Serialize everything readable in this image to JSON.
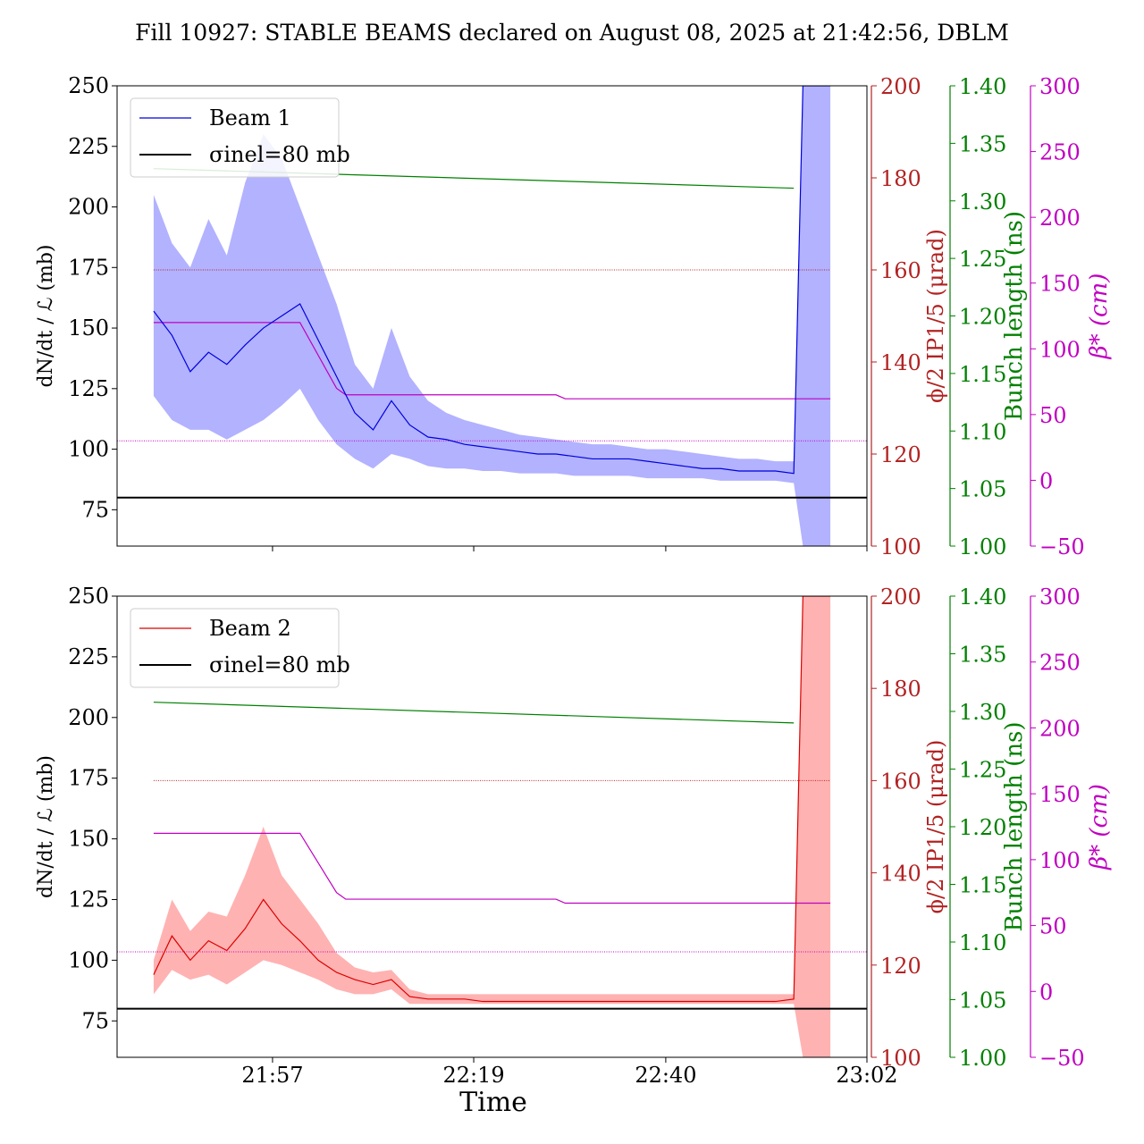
{
  "figure": {
    "title": "Fill 10927: STABLE BEAMS declared on August 08, 2025 at 21:42:56, DBLM",
    "xlabel": "Time",
    "x_tick_labels": [
      "21:57",
      "22:19",
      "22:40",
      "23:02"
    ],
    "colors": {
      "beam1": "#0000dd",
      "beam1_band": "#aaaaff",
      "beam2": "#dd0000",
      "beam2_band": "#ffaaaa",
      "angle_axis": "#b22222",
      "bunch_axis": "#008000",
      "beta_axis": "#c000c0",
      "reference": "#000000"
    }
  },
  "chart_data": [
    {
      "type": "line",
      "panel": "top",
      "series_name": "Beam 1",
      "reference_label": "σinel=80 mb",
      "ylabel_left": "dN/dt / ℒ (mb)",
      "ylabel_angle": "ϕ/2 IP1/5 (μrad)",
      "ylabel_bunch": "Bunch length (ns)",
      "ylabel_beta": "β* (cm)",
      "x_range_minutes": [
        "21:40",
        "23:02"
      ],
      "ylim_left": [
        60,
        250
      ],
      "yticks_left": [
        "75",
        "100",
        "125",
        "150",
        "175",
        "200",
        "225",
        "250"
      ],
      "ylim_angle": [
        100,
        200
      ],
      "yticks_angle": [
        "100",
        "120",
        "140",
        "160",
        "180",
        "200"
      ],
      "ylim_bunch": [
        1.0,
        1.4
      ],
      "yticks_bunch": [
        "1.00",
        "1.05",
        "1.10",
        "1.15",
        "1.20",
        "1.25",
        "1.30",
        "1.35",
        "1.40"
      ],
      "ylim_beta": [
        -50,
        300
      ],
      "yticks_beta": [
        "−50",
        "0",
        "50",
        "100",
        "150",
        "200",
        "250",
        "300"
      ],
      "reference_mb": 80,
      "crossing_angle_urad": 160,
      "beta_dotted_cm": 30,
      "beam_x": [
        "21:44",
        "21:46",
        "21:48",
        "21:50",
        "21:52",
        "21:54",
        "21:56",
        "21:58",
        "22:00",
        "22:02",
        "22:04",
        "22:06",
        "22:08",
        "22:10",
        "22:12",
        "22:14",
        "22:16",
        "22:18",
        "22:20",
        "22:22",
        "22:24",
        "22:26",
        "22:28",
        "22:30",
        "22:32",
        "22:34",
        "22:36",
        "22:38",
        "22:40",
        "22:42",
        "22:44",
        "22:46",
        "22:48",
        "22:50",
        "22:52",
        "22:54",
        "22:55",
        "22:56",
        "22:57",
        "22:58"
      ],
      "beam_y": [
        157,
        147,
        132,
        140,
        135,
        143,
        150,
        155,
        160,
        145,
        130,
        115,
        108,
        120,
        110,
        105,
        104,
        102,
        101,
        100,
        99,
        98,
        98,
        97,
        96,
        96,
        96,
        95,
        94,
        93,
        92,
        92,
        91,
        91,
        91,
        90,
        250,
        250,
        250,
        250
      ],
      "band_low": [
        122,
        112,
        108,
        108,
        104,
        108,
        112,
        118,
        125,
        112,
        102,
        96,
        92,
        98,
        96,
        93,
        92,
        92,
        91,
        91,
        90,
        90,
        90,
        89,
        89,
        89,
        89,
        88,
        88,
        88,
        88,
        87,
        87,
        87,
        87,
        86,
        60,
        60,
        60,
        60
      ],
      "band_high": [
        205,
        185,
        175,
        195,
        180,
        210,
        230,
        220,
        200,
        180,
        160,
        135,
        125,
        150,
        130,
        120,
        115,
        112,
        110,
        108,
        106,
        105,
        104,
        103,
        102,
        102,
        101,
        100,
        100,
        99,
        98,
        97,
        96,
        96,
        95,
        95,
        250,
        250,
        250,
        250
      ],
      "bunch_x": [
        "21:44",
        "22:54"
      ],
      "bunch_y": [
        1.328,
        1.311
      ],
      "beta_x": [
        "21:44",
        "22:00",
        "22:04",
        "22:05",
        "22:28",
        "22:29",
        "22:58"
      ],
      "beta_y": [
        120,
        120,
        70,
        65,
        65,
        62,
        62
      ]
    },
    {
      "type": "line",
      "panel": "bottom",
      "series_name": "Beam 2",
      "reference_label": "σinel=80 mb",
      "ylabel_left": "dN/dt / ℒ (mb)",
      "ylabel_angle": "ϕ/2 IP1/5 (μrad)",
      "ylabel_bunch": "Bunch length (ns)",
      "ylabel_beta": "β* (cm)",
      "x_range_minutes": [
        "21:40",
        "23:02"
      ],
      "ylim_left": [
        60,
        250
      ],
      "yticks_left": [
        "75",
        "100",
        "125",
        "150",
        "175",
        "200",
        "225",
        "250"
      ],
      "ylim_angle": [
        100,
        200
      ],
      "yticks_angle": [
        "100",
        "120",
        "140",
        "160",
        "180",
        "200"
      ],
      "ylim_bunch": [
        1.0,
        1.4
      ],
      "yticks_bunch": [
        "1.00",
        "1.05",
        "1.10",
        "1.15",
        "1.20",
        "1.25",
        "1.30",
        "1.35",
        "1.40"
      ],
      "ylim_beta": [
        -50,
        300
      ],
      "yticks_beta": [
        "−50",
        "0",
        "50",
        "100",
        "150",
        "200",
        "250",
        "300"
      ],
      "reference_mb": 80,
      "crossing_angle_urad": 160,
      "beta_dotted_cm": 30,
      "beam_x": [
        "21:44",
        "21:46",
        "21:48",
        "21:50",
        "21:52",
        "21:54",
        "21:56",
        "21:58",
        "22:00",
        "22:02",
        "22:04",
        "22:06",
        "22:08",
        "22:10",
        "22:12",
        "22:14",
        "22:16",
        "22:18",
        "22:20",
        "22:24",
        "22:28",
        "22:32",
        "22:36",
        "22:40",
        "22:44",
        "22:48",
        "22:52",
        "22:54",
        "22:55",
        "22:56",
        "22:57",
        "22:58"
      ],
      "beam_y": [
        94,
        110,
        100,
        108,
        104,
        113,
        125,
        115,
        108,
        100,
        95,
        92,
        90,
        92,
        85,
        84,
        84,
        84,
        83,
        83,
        83,
        83,
        83,
        83,
        83,
        83,
        83,
        84,
        250,
        250,
        250,
        250
      ],
      "band_low": [
        86,
        96,
        92,
        94,
        90,
        95,
        100,
        98,
        95,
        92,
        88,
        86,
        86,
        88,
        82,
        82,
        82,
        82,
        82,
        82,
        82,
        82,
        82,
        82,
        82,
        82,
        82,
        82,
        60,
        60,
        60,
        60
      ],
      "band_high": [
        100,
        125,
        112,
        120,
        118,
        135,
        155,
        135,
        125,
        115,
        103,
        97,
        95,
        96,
        88,
        86,
        86,
        86,
        86,
        86,
        86,
        86,
        86,
        86,
        86,
        86,
        86,
        86,
        250,
        250,
        250,
        250
      ],
      "bunch_x": [
        "21:44",
        "22:54"
      ],
      "bunch_y": [
        1.308,
        1.29
      ],
      "beta_x": [
        "21:44",
        "22:00",
        "22:04",
        "22:05",
        "22:28",
        "22:29",
        "22:58"
      ],
      "beta_y": [
        120,
        120,
        75,
        70,
        70,
        67,
        67
      ]
    }
  ]
}
